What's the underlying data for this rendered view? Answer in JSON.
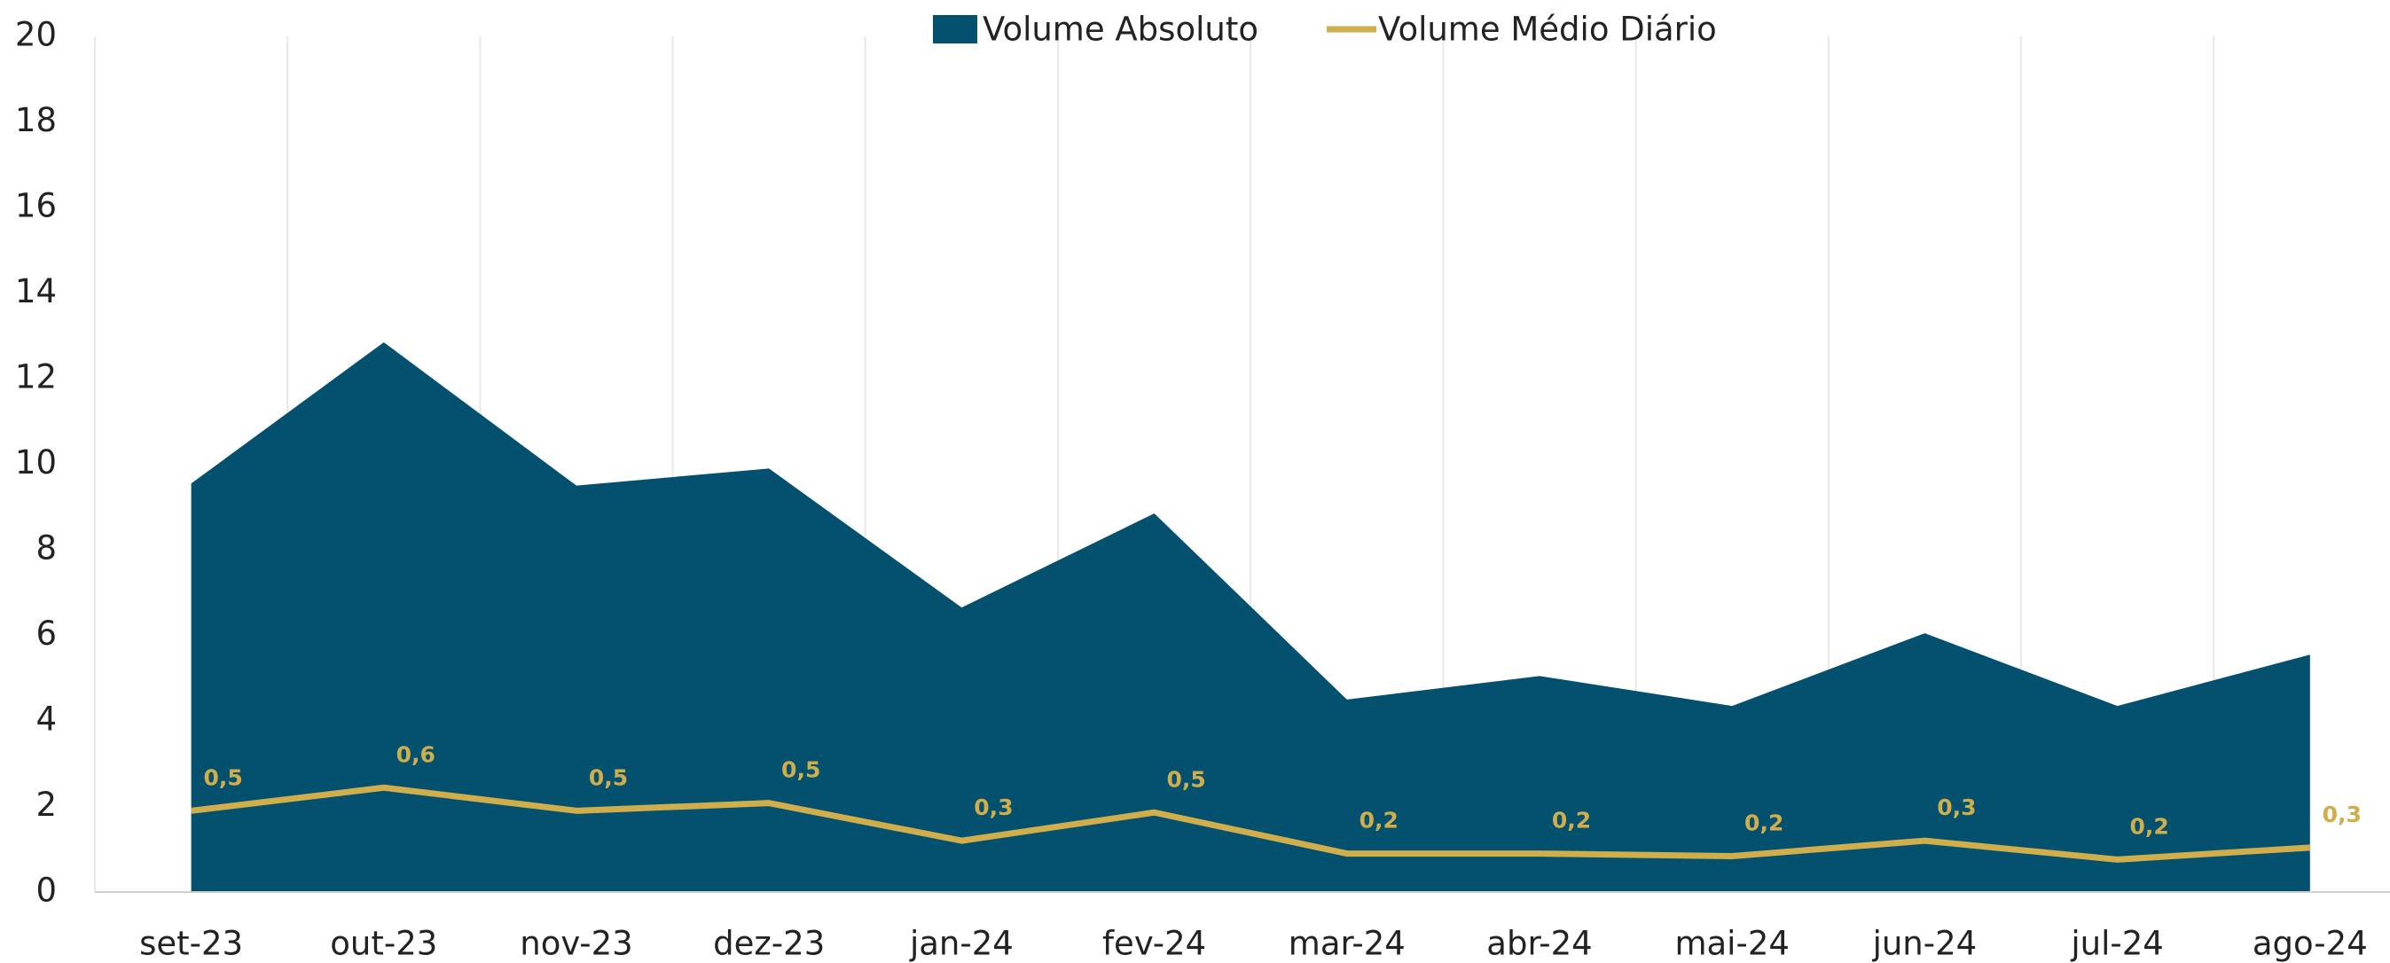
{
  "chart_data": {
    "type": "area-line",
    "categories": [
      "set-23",
      "out-23",
      "nov-23",
      "dez-23",
      "jan-24",
      "fev-24",
      "mar-24",
      "abr-24",
      "mai-24",
      "jun-24",
      "jul-24",
      "ago-24"
    ],
    "series": [
      {
        "name": "Volume Absoluto",
        "color": "#03506f",
        "type": "area",
        "values": [
          9.55,
          12.85,
          9.5,
          9.9,
          6.65,
          8.85,
          4.5,
          5.05,
          4.35,
          6.05,
          4.35,
          5.55
        ]
      },
      {
        "name": "Volume Médio Diário",
        "color": "#cfae4b",
        "type": "line",
        "axis": "y2",
        "values": [
          0.475,
          0.61,
          0.475,
          0.52,
          0.3,
          0.465,
          0.225,
          0.225,
          0.21,
          0.3,
          0.19,
          0.26
        ],
        "value_labels": [
          "0,5",
          "0,6",
          "0,5",
          "0,5",
          "0,3",
          "0,5",
          "0,2",
          "0,2",
          "0,2",
          "0,3",
          "0,2",
          "0,3"
        ]
      }
    ],
    "ylim": [
      0,
      20
    ],
    "yticks": [
      0,
      2,
      4,
      6,
      8,
      10,
      12,
      14,
      16,
      18,
      20
    ],
    "y2lim": [
      0,
      5
    ],
    "legend": "top"
  }
}
